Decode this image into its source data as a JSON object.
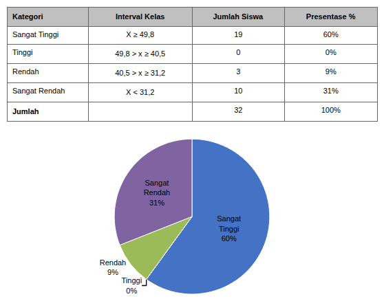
{
  "chart_data": [
    {
      "type": "table",
      "header": [
        "Kategori",
        "Interval Kelas",
        "Jumlah Siswa",
        "Presentase %"
      ],
      "rows": [
        [
          "Sangat Tinggi",
          "X ≥ 49,8",
          "19",
          "60%"
        ],
        [
          "Tinggi",
          "49,8 > x ≥ 40,5",
          "0",
          "0%"
        ],
        [
          "Rendah",
          "40,5 > x ≥ 31,2",
          "3",
          "9%"
        ],
        [
          "Sangat Rendah",
          "X < 31,2",
          "10",
          "31%"
        ],
        [
          "Jumlah",
          "",
          "32",
          "100%"
        ]
      ],
      "color": "#C0C0C0"
    },
    {
      "type": "pie",
      "categories": [
        "Sangat\nTinggi",
        "Tinggi",
        "Rendah",
        "Sangat\nRendah"
      ],
      "values": [
        60,
        0.001,
        9,
        31
      ],
      "value_labels": [
        "60%",
        "0%",
        "9%",
        "31%"
      ],
      "colors": [
        "#4472C4",
        "#4472C4",
        "#9BBB59",
        "#8064A2"
      ],
      "data_labels": true
    }
  ]
}
